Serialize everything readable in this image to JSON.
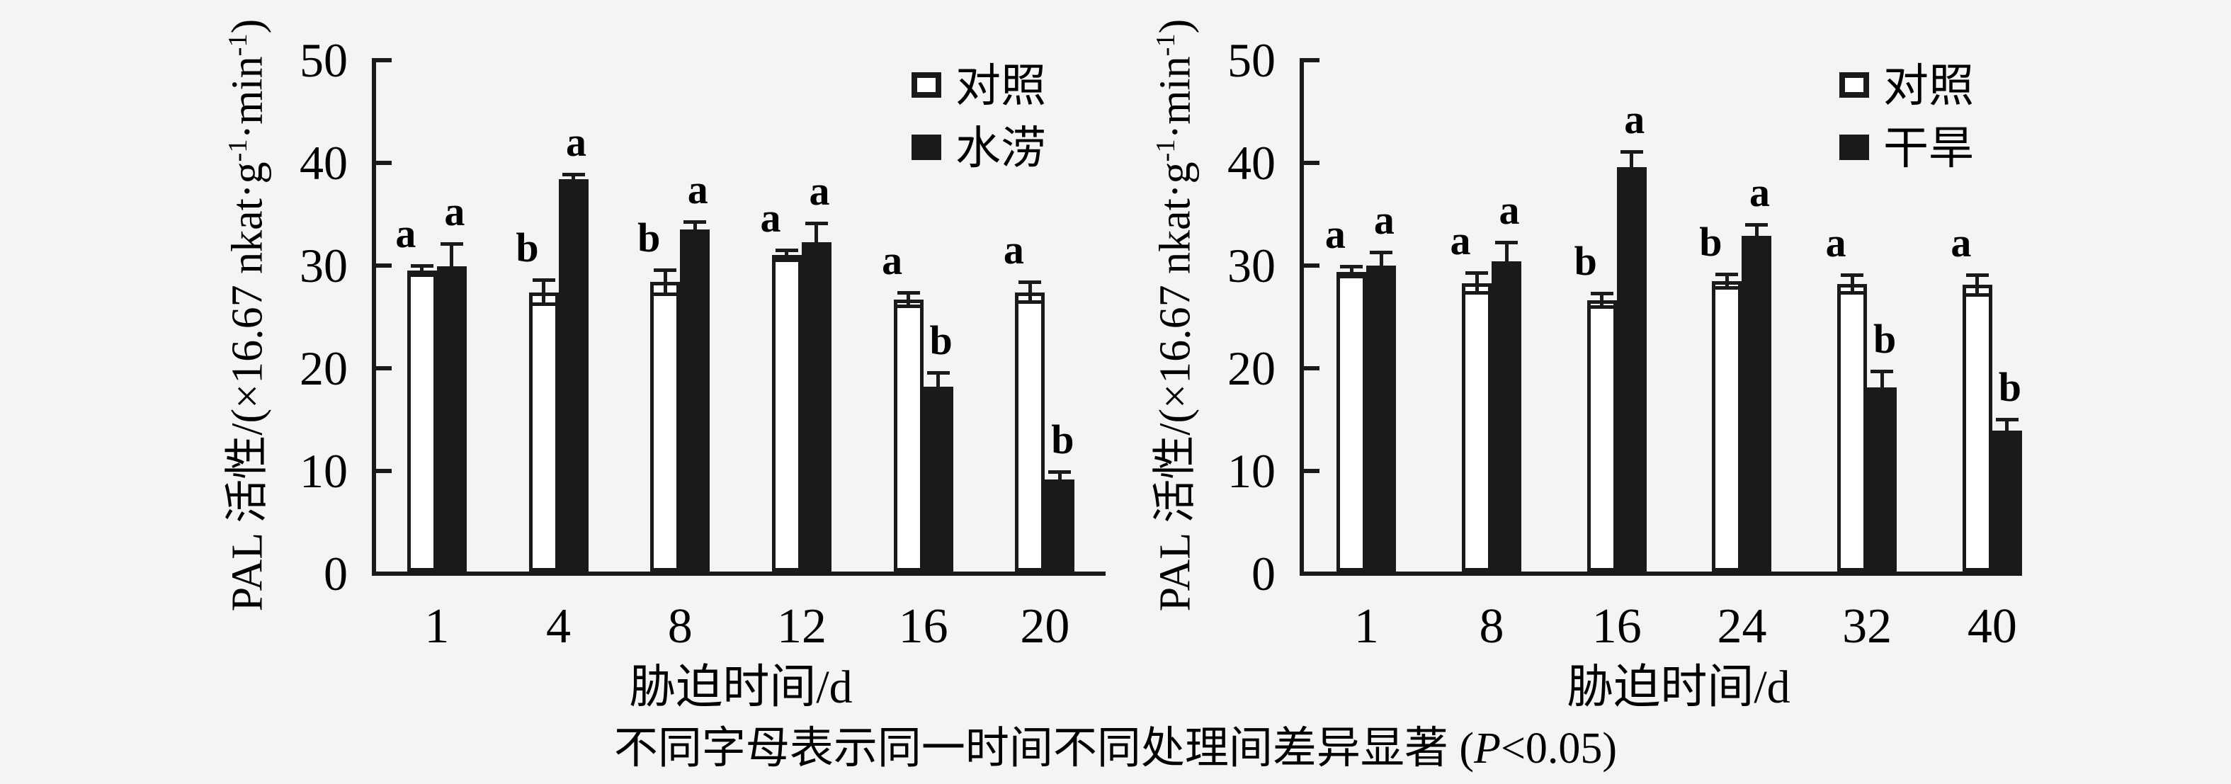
{
  "figure": {
    "colors": {
      "ink": "#1a1a1a",
      "background": "#f4f4f2",
      "bar_white": "#ffffff"
    },
    "caption": {
      "before": "不同字母表示同一时间不同处理间差异显著 (",
      "p": "P",
      "after": "<0.05)"
    }
  },
  "chart_data": [
    {
      "type": "bar",
      "xlabel": "胁迫时间/d",
      "ylabel": "PAL 活性/(×16.67 nkat·g⁻¹·min⁻¹)",
      "ylabel_parts": {
        "main": "PAL 活性/(×16.67 nkat·g",
        "sup1": "-1",
        "mid": "·min",
        "sup2": "-1",
        "end": ")"
      },
      "ylim": [
        0,
        50
      ],
      "yticks": [
        0,
        10,
        20,
        30,
        40,
        50
      ],
      "grid": false,
      "legend_position": "top-right-inside",
      "categories": [
        "1",
        "4",
        "8",
        "12",
        "16",
        "20"
      ],
      "series": [
        {
          "name": "对照",
          "key": "control",
          "fill": "white",
          "values": [
            29.3,
            27.2,
            28.2,
            30.8,
            26.5,
            27.2
          ],
          "errors": [
            0.5,
            1.2,
            1.2,
            0.5,
            0.7,
            1.0
          ],
          "letters": [
            "a",
            "b",
            "b",
            "a",
            "a",
            "a"
          ]
        },
        {
          "name": "水涝",
          "key": "waterlogging",
          "fill": "black",
          "values": [
            29.7,
            38.2,
            33.3,
            32.1,
            18.0,
            9.0
          ],
          "errors": [
            2.2,
            0.5,
            0.8,
            1.8,
            1.4,
            0.7
          ],
          "letters": [
            "a",
            "a",
            "a",
            "a",
            "b",
            "b"
          ]
        }
      ]
    },
    {
      "type": "bar",
      "xlabel": "胁迫时间/d",
      "ylabel": "PAL 活性/(×16.67 nkat·g⁻¹·min⁻¹)",
      "ylabel_parts": {
        "main": "PAL 活性/(×16.67 nkat·g",
        "sup1": "-1",
        "mid": "·min",
        "sup2": "-1",
        "end": ")"
      },
      "ylim": [
        0,
        50
      ],
      "yticks": [
        0,
        10,
        20,
        30,
        40,
        50
      ],
      "grid": false,
      "legend_position": "top-right-inside",
      "categories": [
        "1",
        "8",
        "16",
        "24",
        "32",
        "40"
      ],
      "series": [
        {
          "name": "对照",
          "key": "control",
          "fill": "white",
          "values": [
            29.2,
            28.1,
            26.4,
            28.3,
            28.0,
            27.9
          ],
          "errors": [
            0.5,
            1.0,
            0.7,
            0.7,
            0.9,
            1.0
          ],
          "letters": [
            "a",
            "a",
            "b",
            "b",
            "a",
            "a"
          ]
        },
        {
          "name": "干旱",
          "key": "drought",
          "fill": "black",
          "values": [
            29.8,
            30.2,
            39.4,
            32.7,
            17.9,
            13.7
          ],
          "errors": [
            1.3,
            1.9,
            1.5,
            1.1,
            1.6,
            1.1
          ],
          "letters": [
            "a",
            "a",
            "a",
            "a",
            "b",
            "b"
          ]
        }
      ]
    }
  ]
}
